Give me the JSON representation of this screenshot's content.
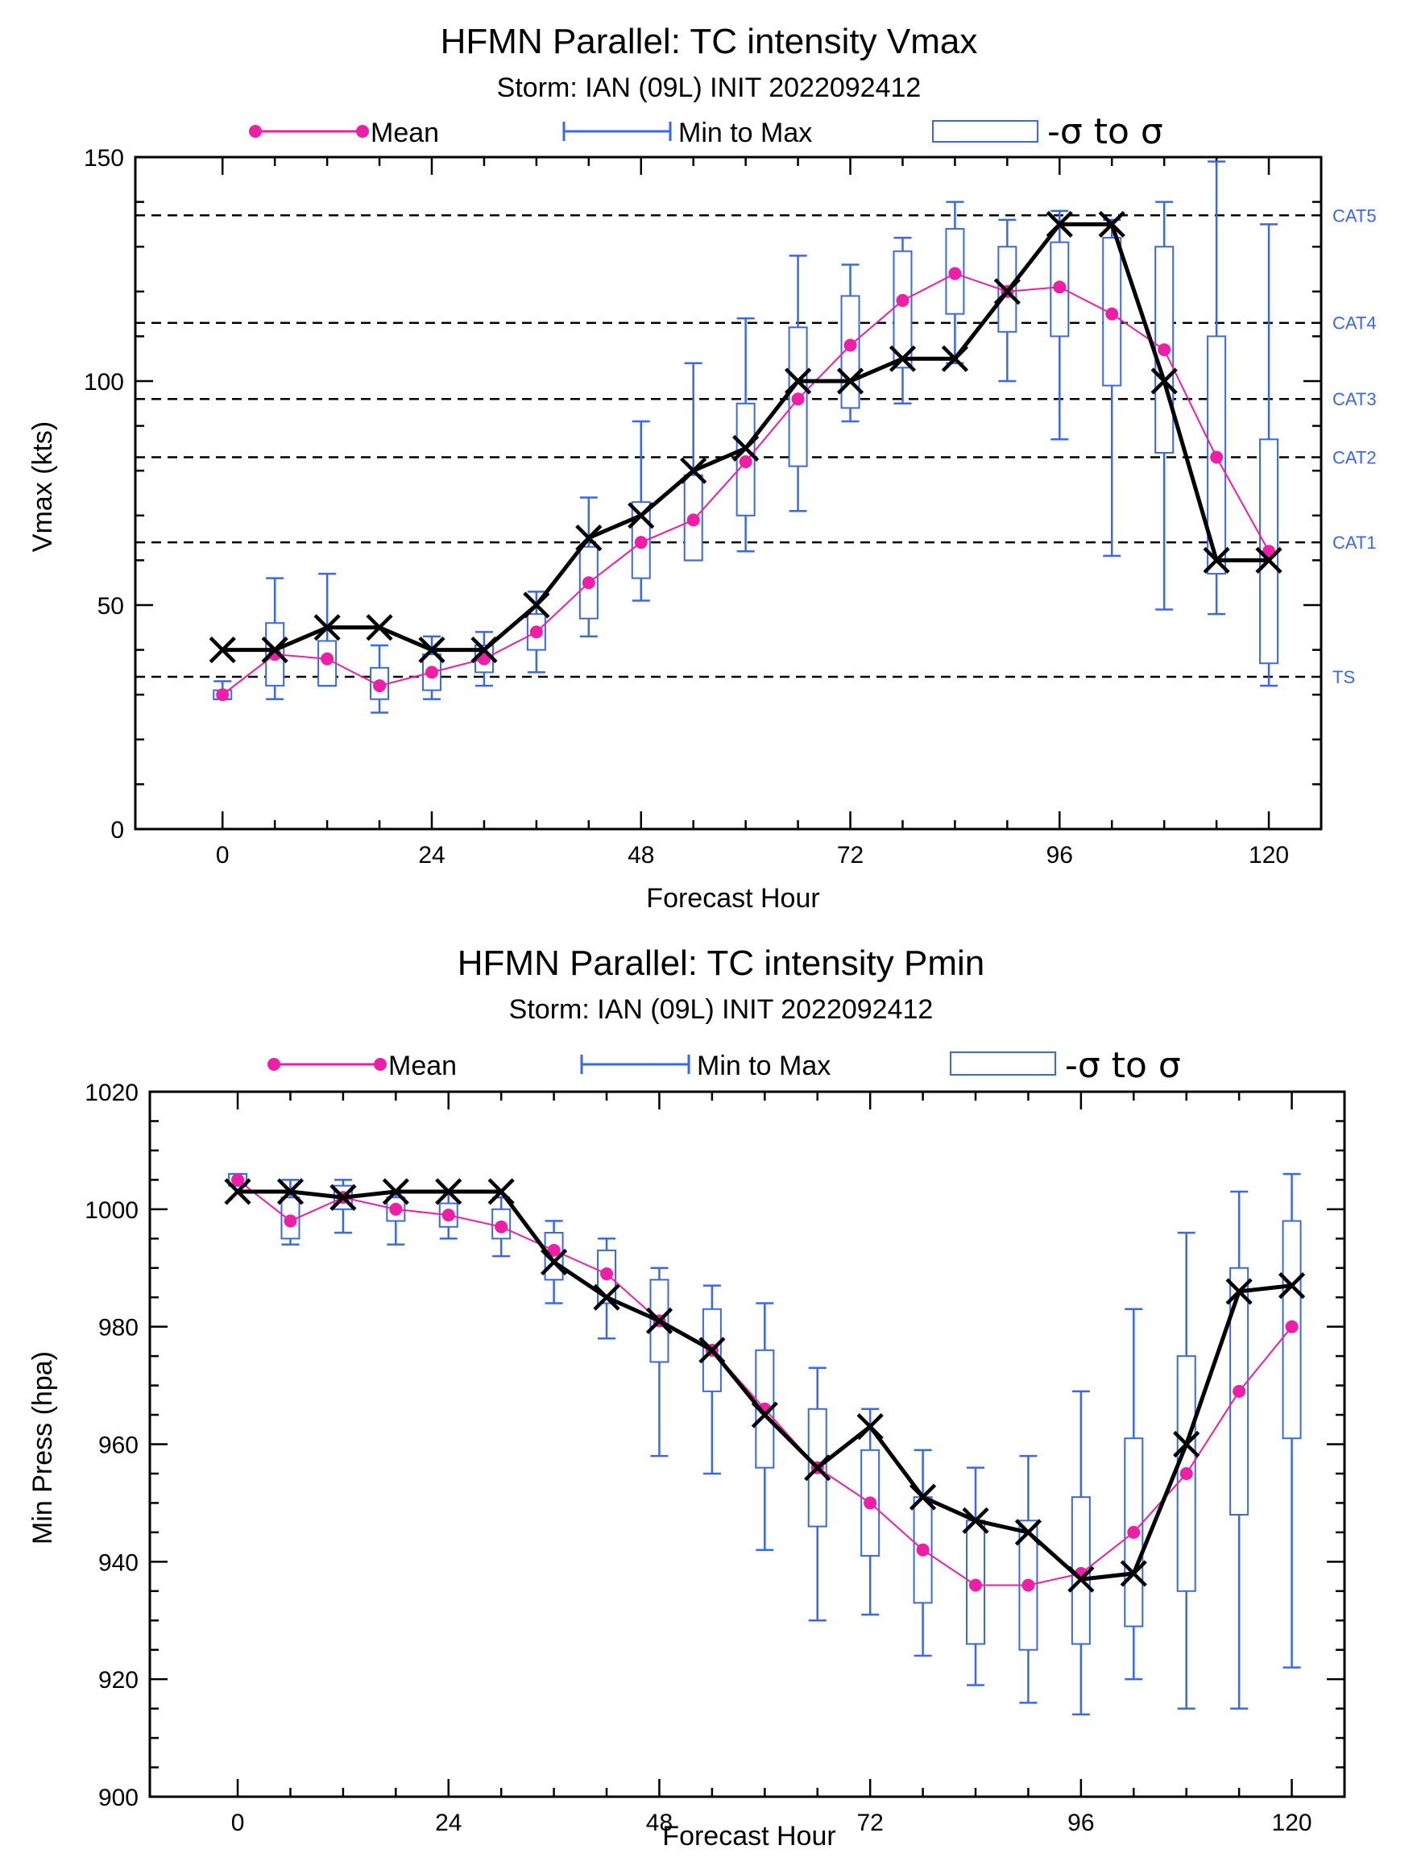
{
  "colors": {
    "mean": "#ee1fa6",
    "spread": "#3b68e8",
    "official": "#000000",
    "category_label": "#3b68e8"
  },
  "legend": {
    "mean": "Mean",
    "range": "Min to Max",
    "sigma": "-σ to σ"
  },
  "chart_data": [
    {
      "type": "line",
      "title": "HFMN Parallel: TC intensity Vmax",
      "subtitle": "Storm: IAN (09L) INIT 2022092412",
      "xlabel": "Forecast Hour",
      "ylabel": "Vmax (kts)",
      "xlim": [
        -10,
        126
      ],
      "ylim": [
        0,
        150
      ],
      "x_ticks": [
        0,
        24,
        48,
        72,
        96,
        120
      ],
      "y_ticks": [
        0,
        50,
        100,
        150
      ],
      "y_minor_step": 10,
      "x_minor_step": 6,
      "legend_position": "top",
      "x": [
        0,
        6,
        12,
        18,
        24,
        30,
        36,
        42,
        48,
        54,
        60,
        66,
        72,
        78,
        84,
        90,
        96,
        102,
        108,
        114,
        120
      ],
      "official": [
        40,
        40,
        45,
        45,
        40,
        40,
        50,
        65,
        70,
        80,
        85,
        100,
        100,
        105,
        105,
        120,
        135,
        135,
        100,
        60,
        60
      ],
      "mean": [
        30,
        39,
        38,
        32,
        35,
        38,
        44,
        55,
        64,
        69,
        82,
        96,
        108,
        118,
        124,
        120,
        121,
        115,
        107,
        83,
        62
      ],
      "min": [
        29,
        29,
        32,
        26,
        29,
        32,
        35,
        43,
        51,
        60,
        62,
        71,
        91,
        95,
        104,
        100,
        87,
        61,
        49,
        48,
        32
      ],
      "max": [
        33,
        56,
        57,
        41,
        43,
        44,
        53,
        74,
        91,
        104,
        114,
        128,
        126,
        132,
        140,
        136,
        138,
        136,
        140,
        149,
        135
      ],
      "sd_low": [
        29,
        32,
        32,
        29,
        31,
        35,
        40,
        47,
        56,
        60,
        70,
        81,
        94,
        103,
        115,
        111,
        110,
        99,
        84,
        57,
        37
      ],
      "sd_high": [
        31,
        46,
        42,
        36,
        39,
        41,
        48,
        63,
        73,
        79,
        95,
        112,
        119,
        129,
        134,
        130,
        131,
        132,
        130,
        110,
        87
      ],
      "reference_lines": [
        {
          "label": "CAT5",
          "value": 137
        },
        {
          "label": "CAT4",
          "value": 113
        },
        {
          "label": "CAT3",
          "value": 96
        },
        {
          "label": "CAT2",
          "value": 83
        },
        {
          "label": "CAT1",
          "value": 64
        },
        {
          "label": "TS",
          "value": 34
        }
      ]
    },
    {
      "type": "line",
      "title": "HFMN Parallel: TC intensity Pmin",
      "subtitle": "Storm: IAN (09L) INIT 2022092412",
      "xlabel": "Forecast Hour",
      "ylabel": "Min Press (hpa)",
      "xlim": [
        -10,
        126
      ],
      "ylim": [
        900,
        1020
      ],
      "x_ticks": [
        0,
        24,
        48,
        72,
        96,
        120
      ],
      "y_ticks": [
        900,
        920,
        940,
        960,
        980,
        1000,
        1020
      ],
      "y_minor_step": 5,
      "x_minor_step": 6,
      "legend_position": "top",
      "x": [
        0,
        6,
        12,
        18,
        24,
        30,
        36,
        42,
        48,
        54,
        60,
        66,
        72,
        78,
        84,
        90,
        96,
        102,
        108,
        114,
        120
      ],
      "official": [
        1003,
        1003,
        1002,
        1003,
        1003,
        1003,
        991,
        985,
        981,
        976,
        965,
        956,
        963,
        951,
        947,
        945,
        937,
        938,
        960,
        986,
        987
      ],
      "mean": [
        1005,
        998,
        1002,
        1000,
        999,
        997,
        993,
        989,
        981,
        976,
        966,
        956,
        950,
        942,
        936,
        936,
        938,
        945,
        955,
        969,
        980
      ],
      "min": [
        1004,
        994,
        996,
        994,
        995,
        992,
        984,
        978,
        958,
        955,
        942,
        930,
        931,
        924,
        919,
        916,
        914,
        920,
        915,
        915,
        922
      ],
      "max": [
        1006,
        1005,
        1005,
        1003,
        1003,
        1002,
        998,
        995,
        990,
        987,
        984,
        973,
        966,
        959,
        956,
        958,
        969,
        983,
        996,
        1003,
        1006
      ],
      "sd_low": [
        1004,
        995,
        1000,
        998,
        997,
        995,
        988,
        984,
        974,
        969,
        956,
        946,
        941,
        933,
        926,
        925,
        926,
        929,
        935,
        948,
        961
      ],
      "sd_high": [
        1006,
        1002,
        1004,
        1002,
        1001,
        1000,
        996,
        993,
        988,
        983,
        976,
        966,
        959,
        951,
        947,
        947,
        951,
        961,
        975,
        990,
        998
      ],
      "reference_lines": []
    }
  ]
}
